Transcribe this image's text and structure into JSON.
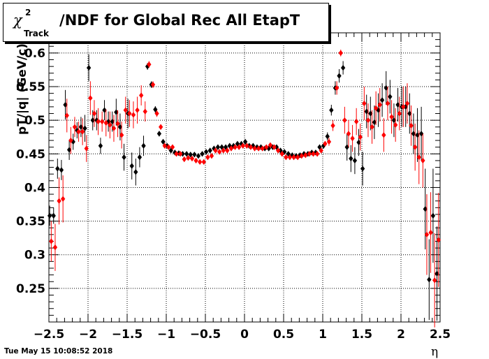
{
  "title": {
    "symbol": "χ",
    "superscript": "2",
    "subscript": "Track",
    "rest": "/NDF for Global Rec All EtapT"
  },
  "axes": {
    "ylabel": "pT/|q| (GeV/c)",
    "xlabel": "η"
  },
  "timestamp": "Tue May 15 10:08:52 2018",
  "colors": {
    "series_black": "#000000",
    "series_red": "#ff0000",
    "grid": "#000000",
    "background": "#ffffff"
  },
  "chart_data": {
    "type": "scatter",
    "title": "χ2Track/NDF for Global Rec All EtapT",
    "xlabel": "η",
    "ylabel": "pT/|q| (GeV/c)",
    "xlim": [
      -2.5,
      2.5
    ],
    "ylim": [
      0.2,
      0.63
    ],
    "grid": true,
    "legend": "none",
    "x_ticks": [
      -2.5,
      -2,
      -1.5,
      -1,
      -0.5,
      0,
      0.5,
      1,
      1.5,
      2,
      2.5
    ],
    "x_tick_labels": [
      "−2.5",
      "−2",
      "−1.5",
      "−1",
      "−0.5",
      "0",
      "0.5",
      "1",
      "1.5",
      "2",
      "2.5"
    ],
    "y_ticks": [
      0.25,
      0.3,
      0.35,
      0.4,
      0.45,
      0.5,
      0.55,
      0.6
    ],
    "y_tick_labels": [
      "0.25",
      "0.3",
      "0.35",
      "0.4",
      "0.45",
      "0.5",
      "0.55",
      "0.6"
    ],
    "series": [
      {
        "color": "#000000",
        "x": [
          -2.49,
          -2.44,
          -2.39,
          -2.34,
          -2.29,
          -2.24,
          -2.19,
          -2.14,
          -2.09,
          -2.04,
          -1.99,
          -1.94,
          -1.89,
          -1.84,
          -1.79,
          -1.74,
          -1.69,
          -1.64,
          -1.59,
          -1.54,
          -1.49,
          -1.44,
          -1.39,
          -1.34,
          -1.29,
          -1.24,
          -1.19,
          -1.14,
          -1.09,
          -1.04,
          -0.99,
          -0.94,
          -0.89,
          -0.84,
          -0.79,
          -0.74,
          -0.69,
          -0.64,
          -0.59,
          -0.54,
          -0.49,
          -0.44,
          -0.39,
          -0.34,
          -0.29,
          -0.24,
          -0.19,
          -0.14,
          -0.09,
          -0.04,
          0.01,
          0.06,
          0.11,
          0.16,
          0.21,
          0.26,
          0.31,
          0.36,
          0.41,
          0.46,
          0.51,
          0.56,
          0.61,
          0.66,
          0.71,
          0.76,
          0.81,
          0.86,
          0.91,
          0.96,
          1.01,
          1.06,
          1.11,
          1.16,
          1.21,
          1.26,
          1.31,
          1.36,
          1.41,
          1.46,
          1.51,
          1.56,
          1.61,
          1.66,
          1.71,
          1.76,
          1.81,
          1.86,
          1.91,
          1.96,
          2.01,
          2.06,
          2.11,
          2.16,
          2.21,
          2.26,
          2.31,
          2.36,
          2.41,
          2.46
        ],
        "y": [
          0.358,
          0.358,
          0.428,
          0.426,
          0.523,
          0.456,
          0.468,
          0.485,
          0.49,
          0.488,
          0.578,
          0.5,
          0.5,
          0.462,
          0.515,
          0.498,
          0.498,
          0.512,
          0.49,
          0.445,
          0.51,
          0.432,
          0.423,
          0.445,
          0.462,
          0.58,
          0.553,
          0.516,
          0.48,
          0.468,
          0.462,
          0.455,
          0.452,
          0.451,
          0.45,
          0.45,
          0.449,
          0.449,
          0.447,
          0.45,
          0.453,
          0.455,
          0.458,
          0.46,
          0.46,
          0.46,
          0.462,
          0.462,
          0.465,
          0.465,
          0.468,
          0.462,
          0.462,
          0.46,
          0.46,
          0.458,
          0.458,
          0.46,
          0.46,
          0.455,
          0.453,
          0.45,
          0.448,
          0.447,
          0.448,
          0.45,
          0.45,
          0.452,
          0.452,
          0.46,
          0.462,
          0.476,
          0.515,
          0.548,
          0.566,
          0.578,
          0.46,
          0.443,
          0.44,
          0.467,
          0.428,
          0.513,
          0.51,
          0.497,
          0.515,
          0.53,
          0.548,
          0.535,
          0.5,
          0.523,
          0.52,
          0.52,
          0.51,
          0.48,
          0.478,
          0.48,
          0.368,
          0.263,
          0.358,
          0.272
        ],
        "err": [
          0.015,
          0.012,
          0.015,
          0.015,
          0.022,
          0.015,
          0.012,
          0.012,
          0.015,
          0.02,
          0.02,
          0.015,
          0.015,
          0.012,
          0.015,
          0.015,
          0.015,
          0.02,
          0.02,
          0.02,
          0.022,
          0.02,
          0.02,
          0.015,
          0.015,
          0.005,
          0.005,
          0.005,
          0.004,
          0.003,
          0.003,
          0.003,
          0.003,
          0.003,
          0.003,
          0.003,
          0.003,
          0.003,
          0.003,
          0.003,
          0.003,
          0.003,
          0.003,
          0.003,
          0.003,
          0.003,
          0.003,
          0.003,
          0.003,
          0.003,
          0.003,
          0.003,
          0.003,
          0.003,
          0.003,
          0.003,
          0.003,
          0.003,
          0.003,
          0.003,
          0.003,
          0.003,
          0.003,
          0.003,
          0.003,
          0.003,
          0.003,
          0.003,
          0.003,
          0.003,
          0.004,
          0.006,
          0.008,
          0.01,
          0.01,
          0.01,
          0.02,
          0.02,
          0.02,
          0.02,
          0.025,
          0.025,
          0.025,
          0.025,
          0.025,
          0.025,
          0.025,
          0.025,
          0.025,
          0.025,
          0.03,
          0.03,
          0.03,
          0.03,
          0.04,
          0.04,
          0.06,
          0.06,
          0.07,
          0.07
        ]
      },
      {
        "color": "#ff0000",
        "x": [
          -2.47,
          -2.42,
          -2.37,
          -2.32,
          -2.27,
          -2.22,
          -2.17,
          -2.12,
          -2.07,
          -2.02,
          -1.97,
          -1.92,
          -1.87,
          -1.82,
          -1.77,
          -1.72,
          -1.67,
          -1.62,
          -1.57,
          -1.52,
          -1.47,
          -1.42,
          -1.37,
          -1.32,
          -1.27,
          -1.22,
          -1.17,
          -1.12,
          -1.07,
          -1.02,
          -0.97,
          -0.92,
          -0.87,
          -0.82,
          -0.77,
          -0.72,
          -0.67,
          -0.62,
          -0.57,
          -0.52,
          -0.47,
          -0.42,
          -0.37,
          -0.32,
          -0.27,
          -0.22,
          -0.17,
          -0.12,
          -0.07,
          -0.02,
          0.03,
          0.08,
          0.13,
          0.18,
          0.23,
          0.28,
          0.33,
          0.38,
          0.43,
          0.48,
          0.53,
          0.58,
          0.63,
          0.68,
          0.73,
          0.78,
          0.83,
          0.88,
          0.93,
          0.98,
          1.03,
          1.08,
          1.13,
          1.18,
          1.23,
          1.28,
          1.33,
          1.38,
          1.43,
          1.48,
          1.53,
          1.58,
          1.63,
          1.68,
          1.73,
          1.78,
          1.83,
          1.88,
          1.93,
          1.98,
          2.03,
          2.08,
          2.13,
          2.18,
          2.23,
          2.28,
          2.33,
          2.38,
          2.43,
          2.48
        ],
        "y": [
          0.32,
          0.311,
          0.38,
          0.383,
          0.507,
          0.47,
          0.49,
          0.483,
          0.483,
          0.458,
          0.533,
          0.51,
          0.498,
          0.498,
          0.496,
          0.493,
          0.488,
          0.495,
          0.478,
          0.515,
          0.51,
          0.508,
          0.515,
          0.537,
          0.513,
          0.583,
          0.553,
          0.51,
          0.49,
          0.462,
          0.46,
          0.46,
          0.45,
          0.45,
          0.442,
          0.444,
          0.443,
          0.44,
          0.438,
          0.438,
          0.445,
          0.447,
          0.455,
          0.453,
          0.455,
          0.455,
          0.458,
          0.46,
          0.46,
          0.462,
          0.462,
          0.46,
          0.458,
          0.458,
          0.458,
          0.46,
          0.463,
          0.46,
          0.455,
          0.45,
          0.445,
          0.445,
          0.445,
          0.445,
          0.447,
          0.448,
          0.45,
          0.45,
          0.45,
          0.455,
          0.465,
          0.468,
          0.492,
          0.548,
          0.6,
          0.5,
          0.48,
          0.473,
          0.498,
          0.475,
          0.525,
          0.5,
          0.49,
          0.518,
          0.523,
          0.478,
          0.525,
          0.505,
          0.493,
          0.51,
          0.52,
          0.525,
          0.492,
          0.46,
          0.445,
          0.44,
          0.33,
          0.333,
          0.262,
          0.322
        ],
        "err": [
          0.03,
          0.035,
          0.035,
          0.035,
          0.025,
          0.02,
          0.015,
          0.015,
          0.02,
          0.02,
          0.025,
          0.02,
          0.02,
          0.015,
          0.02,
          0.02,
          0.02,
          0.02,
          0.02,
          0.02,
          0.02,
          0.02,
          0.02,
          0.015,
          0.015,
          0.005,
          0.005,
          0.005,
          0.004,
          0.003,
          0.003,
          0.003,
          0.003,
          0.003,
          0.003,
          0.003,
          0.003,
          0.003,
          0.003,
          0.003,
          0.003,
          0.003,
          0.003,
          0.003,
          0.003,
          0.003,
          0.003,
          0.003,
          0.003,
          0.003,
          0.003,
          0.003,
          0.003,
          0.003,
          0.003,
          0.003,
          0.003,
          0.003,
          0.003,
          0.003,
          0.003,
          0.003,
          0.003,
          0.003,
          0.003,
          0.003,
          0.003,
          0.003,
          0.003,
          0.003,
          0.004,
          0.006,
          0.008,
          0.01,
          0.005,
          0.02,
          0.02,
          0.02,
          0.02,
          0.02,
          0.025,
          0.025,
          0.025,
          0.025,
          0.025,
          0.025,
          0.025,
          0.025,
          0.025,
          0.025,
          0.03,
          0.03,
          0.03,
          0.035,
          0.04,
          0.04,
          0.06,
          0.06,
          0.07,
          0.07
        ]
      }
    ]
  }
}
